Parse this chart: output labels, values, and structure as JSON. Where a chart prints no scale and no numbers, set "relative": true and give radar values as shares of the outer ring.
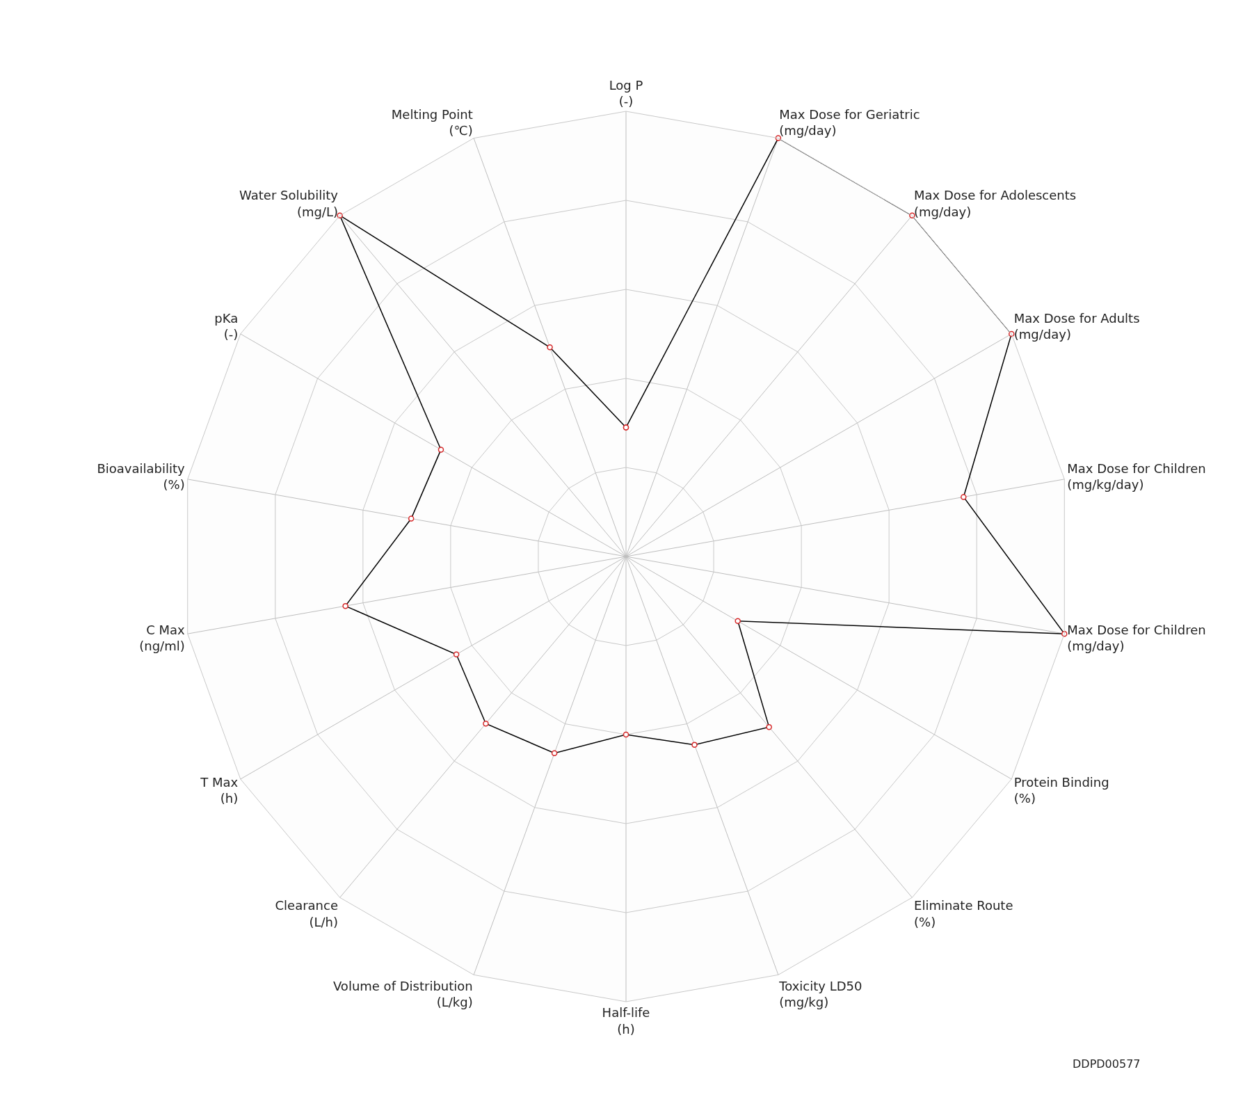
{
  "chart_data": {
    "type": "radar",
    "relative": true,
    "grid": true,
    "marker": "circle",
    "line_style": "solid",
    "categories": [
      "Log P\n(-)",
      "Max Dose for Geriatric\n(mg/day)",
      "Max Dose for Adolescents\n(mg/day)",
      "Max Dose for Adults\n(mg/day)",
      "Max Dose for Children\n(mg/kg/day)",
      "Max Dose for Children\n(mg/day)",
      "Protein Binding\n(%)",
      "Eliminate Route\n(%)",
      "Toxicity LD50\n(mg/kg)",
      "Half-life\n(h)",
      "Volume of Distribution\n(L/kg)",
      "Clearance\n(L/h)",
      "T Max\n(h)",
      "C Max\n(ng/ml)",
      "Bioavailability\n(%)",
      "pKa\n(-)",
      "Water Solubility\n(mg/L)",
      "Melting Point\n(℃)"
    ],
    "series": [
      {
        "color": "#000000",
        "values": [
          0.29,
          1.0,
          1.0,
          1.0,
          0.77,
          1.0,
          0.29,
          0.5,
          0.45,
          0.4,
          0.47,
          0.49,
          0.44,
          0.64,
          0.49,
          0.48,
          1.0,
          0.5
        ]
      }
    ],
    "annotations": [
      "DDPD00577"
    ]
  }
}
